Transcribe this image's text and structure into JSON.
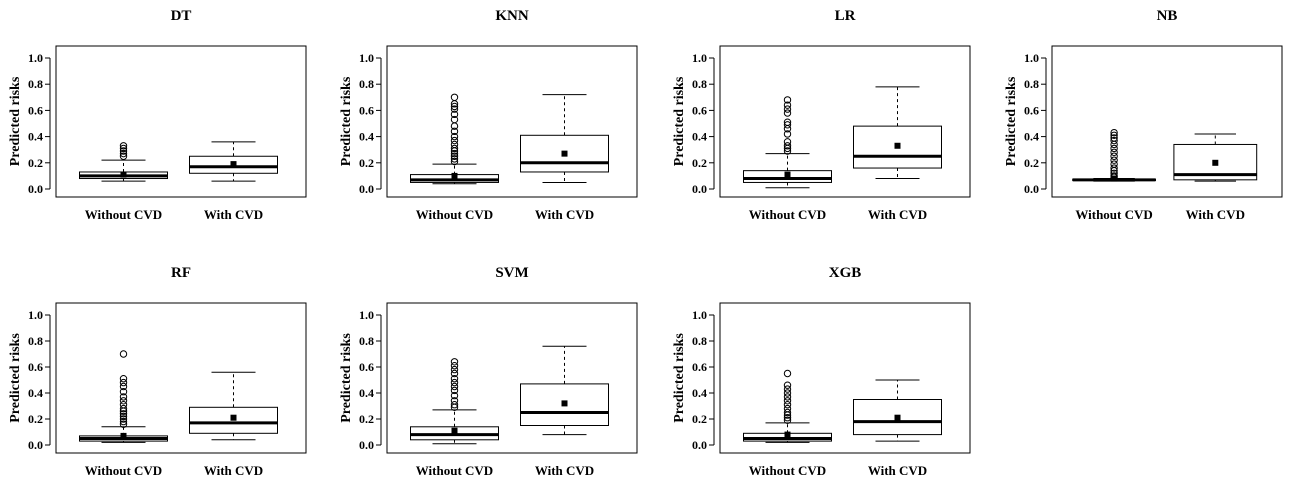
{
  "chart_data": [
    {
      "type": "box",
      "title": "DT",
      "ylabel": "Predicted risks",
      "ylim": [
        0,
        1
      ],
      "yticks": [
        "0.0",
        "0.2",
        "0.4",
        "0.6",
        "0.8",
        "1.0"
      ],
      "categories": [
        "Without CVD",
        "With CVD"
      ],
      "boxes": [
        {
          "whisker_low": 0.06,
          "q1": 0.08,
          "median": 0.1,
          "q3": 0.13,
          "whisker_high": 0.22,
          "mean": 0.11,
          "outliers": [
            0.25,
            0.27,
            0.29,
            0.31,
            0.33
          ]
        },
        {
          "whisker_low": 0.06,
          "q1": 0.12,
          "median": 0.17,
          "q3": 0.25,
          "whisker_high": 0.36,
          "mean": 0.19,
          "outliers": []
        }
      ]
    },
    {
      "type": "box",
      "title": "KNN",
      "ylabel": "Predicted risks",
      "ylim": [
        0,
        1
      ],
      "yticks": [
        "0.0",
        "0.2",
        "0.4",
        "0.6",
        "0.8",
        "1.0"
      ],
      "categories": [
        "Without CVD",
        "With CVD"
      ],
      "boxes": [
        {
          "whisker_low": 0.04,
          "q1": 0.05,
          "median": 0.07,
          "q3": 0.11,
          "whisker_high": 0.19,
          "mean": 0.1,
          "outliers": [
            0.21,
            0.23,
            0.25,
            0.27,
            0.29,
            0.31,
            0.34,
            0.37,
            0.4,
            0.44,
            0.48,
            0.53,
            0.57,
            0.61,
            0.63,
            0.65,
            0.7
          ]
        },
        {
          "whisker_low": 0.05,
          "q1": 0.13,
          "median": 0.2,
          "q3": 0.41,
          "whisker_high": 0.72,
          "mean": 0.27,
          "outliers": []
        }
      ]
    },
    {
      "type": "box",
      "title": "LR",
      "ylabel": "Predicted risks",
      "ylim": [
        0,
        1
      ],
      "yticks": [
        "0.0",
        "0.2",
        "0.4",
        "0.6",
        "0.8",
        "1.0"
      ],
      "categories": [
        "Without CVD",
        "With CVD"
      ],
      "boxes": [
        {
          "whisker_low": 0.01,
          "q1": 0.05,
          "median": 0.08,
          "q3": 0.14,
          "whisker_high": 0.27,
          "mean": 0.11,
          "outliers": [
            0.29,
            0.31,
            0.33,
            0.36,
            0.42,
            0.46,
            0.49,
            0.51,
            0.58,
            0.61,
            0.64,
            0.68
          ]
        },
        {
          "whisker_low": 0.08,
          "q1": 0.16,
          "median": 0.25,
          "q3": 0.48,
          "whisker_high": 0.78,
          "mean": 0.33,
          "outliers": []
        }
      ]
    },
    {
      "type": "box",
      "title": "NB",
      "ylabel": "Predicted risks",
      "ylim": [
        0,
        1
      ],
      "yticks": [
        "0.0",
        "0.2",
        "0.4",
        "0.6",
        "0.8",
        "1.0"
      ],
      "categories": [
        "Without CVD",
        "With CVD"
      ],
      "boxes": [
        {
          "whisker_low": 0.06,
          "q1": 0.065,
          "median": 0.07,
          "q3": 0.075,
          "whisker_high": 0.08,
          "mean": 0.08,
          "outliers": [
            0.09,
            0.1,
            0.12,
            0.14,
            0.16,
            0.19,
            0.22,
            0.25,
            0.28,
            0.31,
            0.34,
            0.37,
            0.39,
            0.41,
            0.43
          ]
        },
        {
          "whisker_low": 0.06,
          "q1": 0.07,
          "median": 0.11,
          "q3": 0.34,
          "whisker_high": 0.42,
          "mean": 0.2,
          "outliers": []
        }
      ]
    },
    {
      "type": "box",
      "title": "RF",
      "ylabel": "Predicted risks",
      "ylim": [
        0,
        1
      ],
      "yticks": [
        "0.0",
        "0.2",
        "0.4",
        "0.6",
        "0.8",
        "1.0"
      ],
      "categories": [
        "Without CVD",
        "With CVD"
      ],
      "boxes": [
        {
          "whisker_low": 0.02,
          "q1": 0.03,
          "median": 0.05,
          "q3": 0.07,
          "whisker_high": 0.14,
          "mean": 0.07,
          "outliers": [
            0.16,
            0.18,
            0.2,
            0.22,
            0.24,
            0.26,
            0.28,
            0.31,
            0.34,
            0.37,
            0.41,
            0.45,
            0.48,
            0.51,
            0.7
          ]
        },
        {
          "whisker_low": 0.04,
          "q1": 0.09,
          "median": 0.17,
          "q3": 0.29,
          "whisker_high": 0.56,
          "mean": 0.21,
          "outliers": []
        }
      ]
    },
    {
      "type": "box",
      "title": "SVM",
      "ylabel": "Predicted risks",
      "ylim": [
        0,
        1
      ],
      "yticks": [
        "0.0",
        "0.2",
        "0.4",
        "0.6",
        "0.8",
        "1.0"
      ],
      "categories": [
        "Without CVD",
        "With CVD"
      ],
      "boxes": [
        {
          "whisker_low": 0.01,
          "q1": 0.04,
          "median": 0.08,
          "q3": 0.14,
          "whisker_high": 0.27,
          "mean": 0.11,
          "outliers": [
            0.29,
            0.31,
            0.34,
            0.38,
            0.42,
            0.45,
            0.48,
            0.51,
            0.55,
            0.58,
            0.61,
            0.64
          ]
        },
        {
          "whisker_low": 0.08,
          "q1": 0.15,
          "median": 0.25,
          "q3": 0.47,
          "whisker_high": 0.76,
          "mean": 0.32,
          "outliers": []
        }
      ]
    },
    {
      "type": "box",
      "title": "XGB",
      "ylabel": "Predicted risks",
      "ylim": [
        0,
        1
      ],
      "yticks": [
        "0.0",
        "0.2",
        "0.4",
        "0.6",
        "0.8",
        "1.0"
      ],
      "categories": [
        "Without CVD",
        "With CVD"
      ],
      "boxes": [
        {
          "whisker_low": 0.02,
          "q1": 0.03,
          "median": 0.05,
          "q3": 0.09,
          "whisker_high": 0.17,
          "mean": 0.08,
          "outliers": [
            0.19,
            0.21,
            0.23,
            0.25,
            0.28,
            0.31,
            0.34,
            0.37,
            0.4,
            0.43,
            0.46,
            0.55
          ]
        },
        {
          "whisker_low": 0.03,
          "q1": 0.08,
          "median": 0.18,
          "q3": 0.35,
          "whisker_high": 0.5,
          "mean": 0.21,
          "outliers": []
        }
      ]
    }
  ]
}
